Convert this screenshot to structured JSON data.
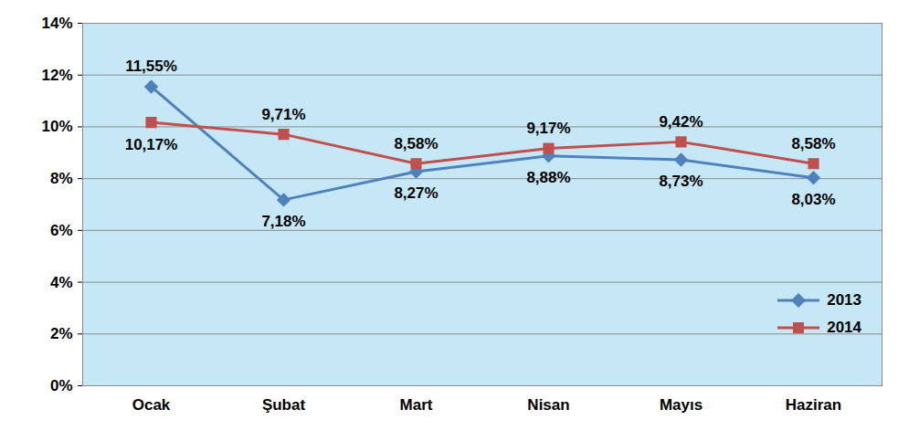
{
  "chart_data": {
    "type": "line",
    "categories": [
      "Ocak",
      "Şubat",
      "Mart",
      "Nisan",
      "Mayıs",
      "Haziran"
    ],
    "series": [
      {
        "name": "2013",
        "color": "#4f81bd",
        "marker": "diamond",
        "values": [
          11.55,
          7.18,
          8.27,
          8.88,
          8.73,
          8.03
        ],
        "value_labels": [
          "11,55%",
          "7,18%",
          "8,27%",
          "8,88%",
          "8,73%",
          "8,03%"
        ]
      },
      {
        "name": "2014",
        "color": "#c0504d",
        "marker": "square",
        "values": [
          10.17,
          9.71,
          8.58,
          9.17,
          9.42,
          8.58
        ],
        "value_labels": [
          "10,17%",
          "9,71%",
          "8,58%",
          "9,17%",
          "9,42%",
          "8,58%"
        ]
      }
    ],
    "ylim": [
      0,
      14
    ],
    "yticks": [
      {
        "value": 0,
        "label": "0%"
      },
      {
        "value": 2,
        "label": "2%"
      },
      {
        "value": 4,
        "label": "4%"
      },
      {
        "value": 6,
        "label": "6%"
      },
      {
        "value": 8,
        "label": "8%"
      },
      {
        "value": 10,
        "label": "10%"
      },
      {
        "value": 12,
        "label": "12%"
      },
      {
        "value": 14,
        "label": "14%"
      }
    ],
    "grid": true,
    "data_labels": true,
    "legend": "lower right"
  }
}
